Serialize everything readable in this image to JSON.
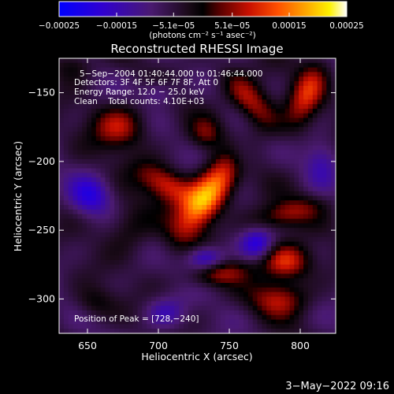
{
  "chart_data": {
    "type": "heatmap",
    "title": "Reconstructed RHESSI Image",
    "xlabel": "Heliocentric X (arcsec)",
    "ylabel": "Heliocentric Y (arcsec)",
    "xlim": [
      630,
      825
    ],
    "ylim": [
      -325,
      -125
    ],
    "x_ticks": [
      650,
      700,
      750,
      800
    ],
    "y_ticks": [
      -300,
      -250,
      -200,
      -150
    ],
    "x_tick_labels": [
      "650",
      "700",
      "750",
      "800"
    ],
    "y_tick_labels": [
      "−300",
      "−250",
      "−200",
      "−150"
    ],
    "colormap": "blue-black-red-yellow-white",
    "colorbar": {
      "range": [
        -0.00025,
        0.00025
      ],
      "tick_values": [
        -0.00025,
        -0.00015,
        -5.1e-05,
        5.1e-05,
        0.00015,
        0.00025
      ],
      "tick_labels": [
        "−0.00025",
        "−0.00015",
        "−5.1e−05",
        "5.1e−05",
        "0.00015",
        "0.00025"
      ],
      "unit_label": "(photons cm⁻² s⁻¹ asec⁻²)"
    },
    "annotations": {
      "time": "5−Sep−2004 01:40:44.000 to 01:46:44.000",
      "detectors": "Detectors: 3F 4F 5F 6F 7F 8F, Att 0",
      "energy": "Energy Range: 12.0 − 25.0 keV",
      "clean": "Clean    Total counts: 4.10E+03",
      "peak": "Position of Peak = [728,−240]"
    },
    "peak_position": [
      728,
      -240
    ],
    "sources": [
      {
        "x": 735,
        "y": -225,
        "sx": 9,
        "sy": 24,
        "rot": -35,
        "amp": 0.00025
      },
      {
        "x": 706,
        "y": -217,
        "sx": 16,
        "sy": 8,
        "rot": -30,
        "amp": 0.00015
      },
      {
        "x": 765,
        "y": -156,
        "sx": 8,
        "sy": 18,
        "rot": 40,
        "amp": 0.00014
      },
      {
        "x": 672,
        "y": -175,
        "sx": 13,
        "sy": 11,
        "rot": 0,
        "amp": 0.00013
      },
      {
        "x": 805,
        "y": -150,
        "sx": 8,
        "sy": 18,
        "rot": -20,
        "amp": 0.00014
      },
      {
        "x": 790,
        "y": -238,
        "sx": 18,
        "sy": 7,
        "rot": 15,
        "amp": 0.00011
      },
      {
        "x": 790,
        "y": -273,
        "sx": 12,
        "sy": 9,
        "rot": 0,
        "amp": 0.00017
      },
      {
        "x": 785,
        "y": -300,
        "sx": 14,
        "sy": 9,
        "rot": 0,
        "amp": 0.00012
      },
      {
        "x": 743,
        "y": -282,
        "sx": 15,
        "sy": 6,
        "rot": 10,
        "amp": 0.0001
      },
      {
        "x": 680,
        "y": -247,
        "sx": 12,
        "sy": 12,
        "rot": 0,
        "amp": 7e-05
      },
      {
        "x": 655,
        "y": -303,
        "sx": 10,
        "sy": 8,
        "rot": 0,
        "amp": 6e-05
      },
      {
        "x": 733,
        "y": -180,
        "sx": 8,
        "sy": 8,
        "rot": 0,
        "amp": 8e-05
      },
      {
        "x": 640,
        "y": -130,
        "sx": 10,
        "sy": 8,
        "rot": 0,
        "amp": 7e-05
      },
      {
        "x": 770,
        "y": -260,
        "sx": 8,
        "sy": 8,
        "rot": 0,
        "amp": -0.00012
      },
      {
        "x": 733,
        "y": -270,
        "sx": 9,
        "sy": 6,
        "rot": 0,
        "amp": -0.00013
      },
      {
        "x": 652,
        "y": -225,
        "sx": 10,
        "sy": 10,
        "rot": 0,
        "amp": -0.00011
      },
      {
        "x": 758,
        "y": -195,
        "sx": 8,
        "sy": 10,
        "rot": 0,
        "amp": -9e-05
      },
      {
        "x": 700,
        "y": -150,
        "sx": 9,
        "sy": 6,
        "rot": 0,
        "amp": -7e-05
      },
      {
        "x": 705,
        "y": -310,
        "sx": 10,
        "sy": 8,
        "rot": 0,
        "amp": -8e-05
      },
      {
        "x": 815,
        "y": -200,
        "sx": 8,
        "sy": 12,
        "rot": 0,
        "amp": -7e-05
      }
    ]
  },
  "footer": {
    "date": "3−May−2022 09:16"
  }
}
